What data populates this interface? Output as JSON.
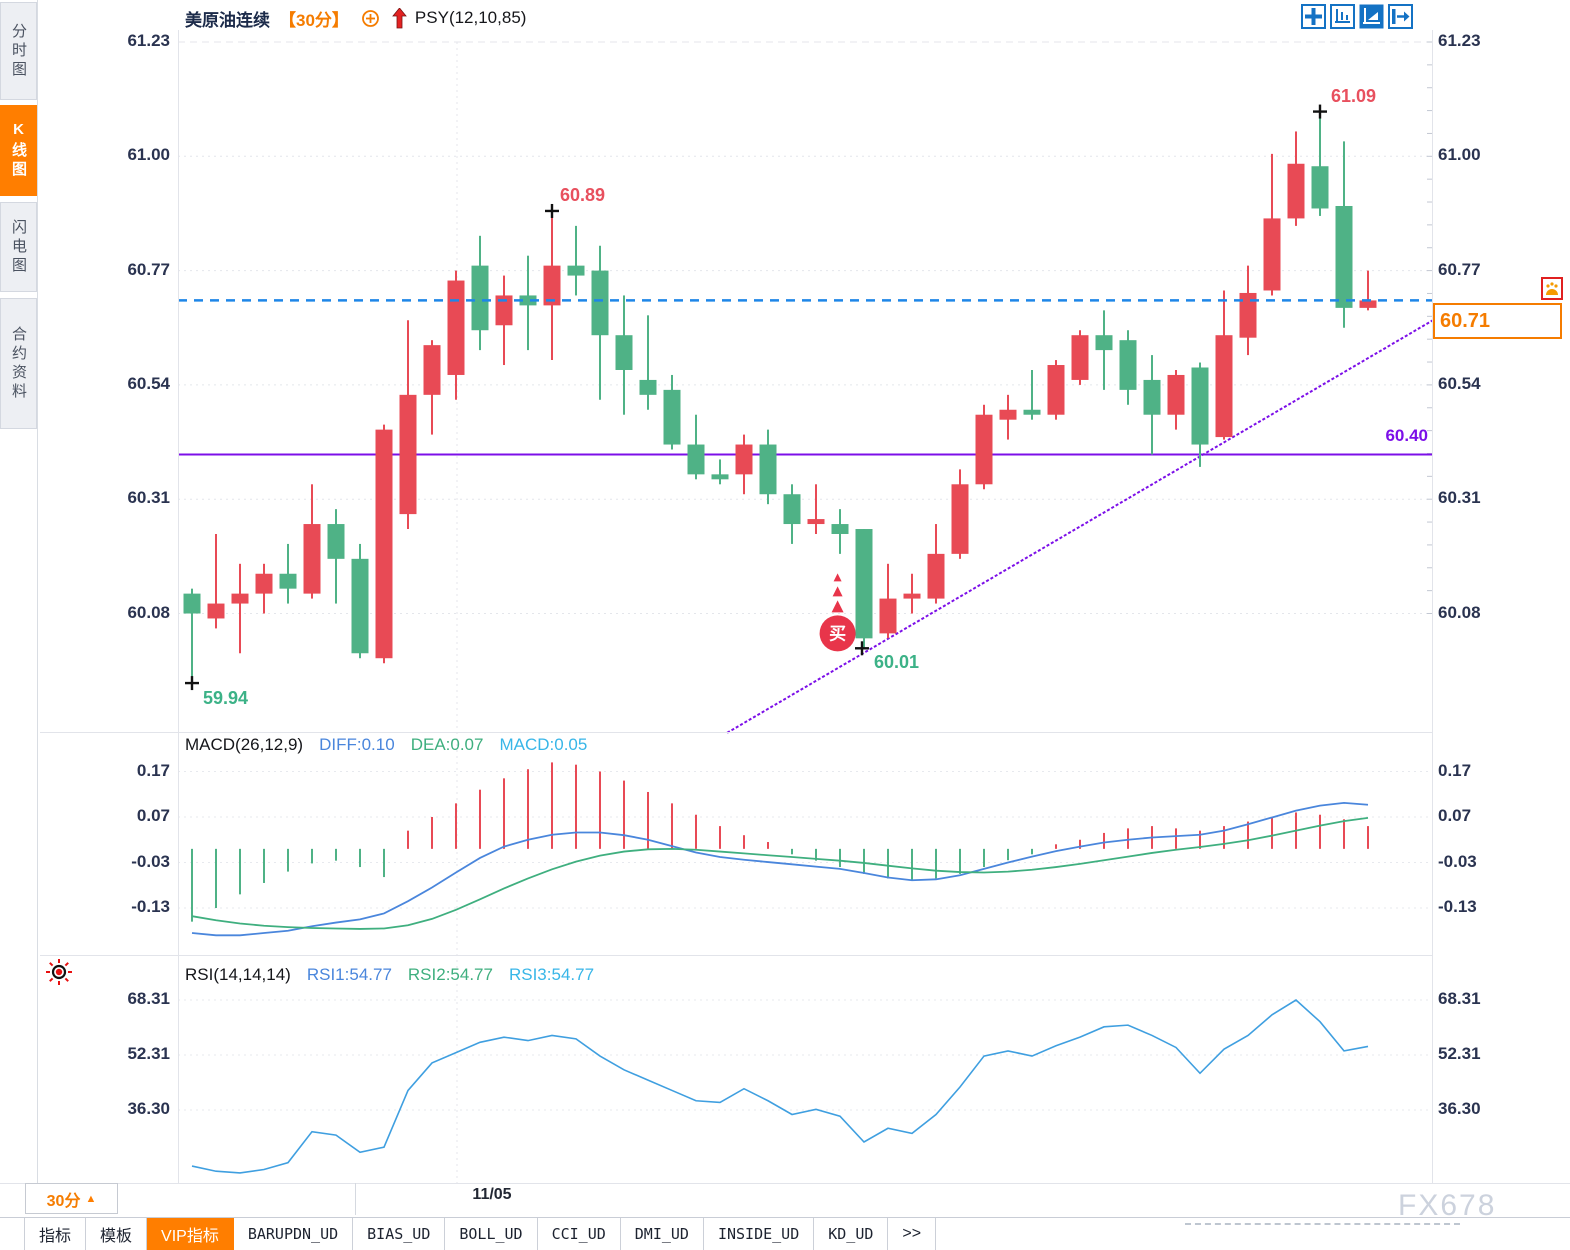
{
  "app": {
    "title_symbol": "美原油连续",
    "title_period": "【30分】",
    "title_indicator": "PSY(12,10,85)"
  },
  "sidebar": {
    "items": [
      {
        "label": "分时图",
        "active": false
      },
      {
        "label": "K线图",
        "active": true
      },
      {
        "label": "闪电图",
        "active": false
      },
      {
        "label": "合约资料",
        "active": false
      }
    ]
  },
  "toolbar": {
    "icons": [
      "layout-grid-icon",
      "axis-scale-icon",
      "chart-style-icon",
      "pane-expand-icon"
    ]
  },
  "chart_data": [
    {
      "type": "candlestick",
      "symbol": "美原油连续",
      "period": "30分",
      "overlay_indicator": "PSY(12,10,85)",
      "y_ticks": [
        61.23,
        61.0,
        60.77,
        60.54,
        60.31,
        60.08
      ],
      "x_tick_label": "11/05",
      "candles": [
        [
          60.12,
          60.13,
          59.94,
          60.08
        ],
        [
          60.07,
          60.24,
          60.05,
          60.1
        ],
        [
          60.1,
          60.18,
          60.0,
          60.12
        ],
        [
          60.12,
          60.18,
          60.08,
          60.16
        ],
        [
          60.16,
          60.22,
          60.1,
          60.13
        ],
        [
          60.12,
          60.34,
          60.11,
          60.26
        ],
        [
          60.26,
          60.29,
          60.1,
          60.19
        ],
        [
          60.19,
          60.22,
          59.99,
          60.0
        ],
        [
          59.99,
          60.46,
          59.98,
          60.45
        ],
        [
          60.28,
          60.67,
          60.25,
          60.52
        ],
        [
          60.52,
          60.63,
          60.44,
          60.62
        ],
        [
          60.56,
          60.77,
          60.51,
          60.75
        ],
        [
          60.78,
          60.84,
          60.61,
          60.65
        ],
        [
          60.66,
          60.76,
          60.58,
          60.72
        ],
        [
          60.72,
          60.8,
          60.61,
          60.7
        ],
        [
          60.7,
          60.89,
          60.59,
          60.78
        ],
        [
          60.78,
          60.86,
          60.72,
          60.76
        ],
        [
          60.77,
          60.82,
          60.51,
          60.64
        ],
        [
          60.64,
          60.72,
          60.48,
          60.57
        ],
        [
          60.55,
          60.68,
          60.49,
          60.52
        ],
        [
          60.53,
          60.56,
          60.41,
          60.42
        ],
        [
          60.42,
          60.48,
          60.35,
          60.36
        ],
        [
          60.36,
          60.39,
          60.34,
          60.35
        ],
        [
          60.36,
          60.44,
          60.32,
          60.42
        ],
        [
          60.42,
          60.45,
          60.3,
          60.32
        ],
        [
          60.32,
          60.34,
          60.22,
          60.26
        ],
        [
          60.26,
          60.34,
          60.24,
          60.27
        ],
        [
          60.26,
          60.29,
          60.2,
          60.24
        ],
        [
          60.25,
          60.25,
          60.01,
          60.03
        ],
        [
          60.04,
          60.18,
          60.03,
          60.11
        ],
        [
          60.11,
          60.16,
          60.08,
          60.12
        ],
        [
          60.11,
          60.26,
          60.1,
          60.2
        ],
        [
          60.2,
          60.37,
          60.19,
          60.34
        ],
        [
          60.34,
          60.5,
          60.33,
          60.48
        ],
        [
          60.47,
          60.52,
          60.43,
          60.49
        ],
        [
          60.49,
          60.57,
          60.47,
          60.48
        ],
        [
          60.48,
          60.59,
          60.47,
          60.58
        ],
        [
          60.55,
          60.65,
          60.54,
          60.64
        ],
        [
          60.64,
          60.69,
          60.53,
          60.61
        ],
        [
          60.63,
          60.65,
          60.5,
          60.53
        ],
        [
          60.55,
          60.6,
          60.4,
          60.48
        ],
        [
          60.48,
          60.57,
          60.45,
          60.56
        ],
        [
          60.575,
          60.585,
          60.375,
          60.42
        ],
        [
          60.435,
          60.73,
          60.43,
          60.64
        ],
        [
          60.635,
          60.78,
          60.6,
          60.725
        ],
        [
          60.73,
          61.005,
          60.72,
          60.875
        ],
        [
          60.875,
          61.05,
          60.86,
          60.985
        ],
        [
          60.98,
          61.09,
          60.88,
          60.895
        ],
        [
          60.9,
          61.03,
          60.655,
          60.695
        ],
        [
          60.695,
          60.77,
          60.69,
          60.71
        ]
      ],
      "annotations": {
        "swing_high_1": {
          "index": 15,
          "price": 60.89,
          "label": "60.89"
        },
        "swing_high_2": {
          "index": 47,
          "price": 61.09,
          "label": "61.09"
        },
        "swing_low_1": {
          "index": 0,
          "price": 59.94,
          "label": "59.94"
        },
        "swing_low_2": {
          "index": 28,
          "price": 60.01,
          "label": "60.01"
        },
        "horizontal_line": {
          "price": 60.4,
          "label": "60.40"
        },
        "trend_line": {
          "start": {
            "index": 22.3,
            "price": 59.84
          },
          "end": {
            "index": 51.7,
            "price": 60.67
          }
        },
        "current_price": {
          "price": 60.71,
          "label": "60.71"
        },
        "buy_marker": {
          "index": 26.9,
          "price": 60.04,
          "label": "买"
        }
      }
    },
    {
      "type": "macd",
      "name": "MACD(26,12,9)",
      "readouts": [
        {
          "label": "DIFF:0.10"
        },
        {
          "label": "DEA:0.07"
        },
        {
          "label": "MACD:0.05"
        }
      ],
      "y_ticks": [
        0.17,
        0.07,
        -0.03,
        -0.13
      ],
      "diff": [
        -0.185,
        -0.19,
        -0.19,
        -0.185,
        -0.18,
        -0.17,
        -0.162,
        -0.155,
        -0.142,
        -0.115,
        -0.085,
        -0.052,
        -0.02,
        0.005,
        0.02,
        0.031,
        0.036,
        0.036,
        0.03,
        0.02,
        0.006,
        -0.008,
        -0.018,
        -0.024,
        -0.029,
        -0.034,
        -0.039,
        -0.044,
        -0.053,
        -0.063,
        -0.069,
        -0.067,
        -0.058,
        -0.044,
        -0.03,
        -0.017,
        -0.005,
        0.005,
        0.014,
        0.02,
        0.025,
        0.028,
        0.031,
        0.04,
        0.054,
        0.069,
        0.084,
        0.095,
        0.101,
        0.097
      ],
      "dea": [
        -0.148,
        -0.157,
        -0.164,
        -0.169,
        -0.172,
        -0.174,
        -0.175,
        -0.176,
        -0.175,
        -0.168,
        -0.154,
        -0.134,
        -0.111,
        -0.087,
        -0.065,
        -0.045,
        -0.028,
        -0.015,
        -0.006,
        -0.001,
        0.0,
        -0.002,
        -0.006,
        -0.01,
        -0.014,
        -0.018,
        -0.022,
        -0.026,
        -0.031,
        -0.037,
        -0.043,
        -0.048,
        -0.051,
        -0.052,
        -0.05,
        -0.046,
        -0.04,
        -0.033,
        -0.025,
        -0.017,
        -0.009,
        -0.002,
        0.004,
        0.011,
        0.019,
        0.029,
        0.04,
        0.051,
        0.061,
        0.068
      ],
      "histogram": [
        -0.16,
        -0.13,
        -0.1,
        -0.075,
        -0.05,
        -0.032,
        -0.026,
        -0.04,
        -0.062,
        0.04,
        0.07,
        0.1,
        0.13,
        0.155,
        0.175,
        0.19,
        0.185,
        0.17,
        0.15,
        0.125,
        0.1,
        0.075,
        0.05,
        0.03,
        0.015,
        -0.012,
        -0.026,
        -0.04,
        -0.055,
        -0.065,
        -0.07,
        -0.065,
        -0.055,
        -0.04,
        -0.025,
        -0.012,
        0.01,
        0.02,
        0.035,
        0.045,
        0.05,
        0.045,
        0.04,
        0.05,
        0.06,
        0.07,
        0.08,
        0.075,
        0.065,
        0.05
      ]
    },
    {
      "type": "line",
      "name": "RSI(14,14,14)",
      "readouts": [
        {
          "label": "RSI1:54.77"
        },
        {
          "label": "RSI2:54.77"
        },
        {
          "label": "RSI3:54.77"
        }
      ],
      "y_ticks": [
        68.31,
        52.31,
        36.3
      ],
      "values": [
        20,
        18.5,
        18,
        19,
        21,
        30,
        29,
        24,
        25.5,
        42,
        50,
        53,
        56,
        57.5,
        56.5,
        58,
        57,
        52,
        48,
        45,
        42,
        39,
        38.5,
        42.5,
        39,
        35,
        36.5,
        34.5,
        27,
        31,
        29.5,
        35,
        43,
        52,
        53.5,
        52,
        55,
        57.5,
        60.5,
        61,
        58,
        54.5,
        47,
        54,
        58,
        64,
        68.3,
        62,
        53.5,
        54.8
      ]
    }
  ],
  "bottom": {
    "period_button": "30分",
    "tabs": [
      {
        "label": "指标",
        "active": false,
        "mono": false
      },
      {
        "label": "模板",
        "active": false,
        "mono": false
      },
      {
        "label": "VIP指标",
        "active": true,
        "mono": false
      },
      {
        "label": "BARUPDN_UD",
        "active": false,
        "mono": true
      },
      {
        "label": "BIAS_UD",
        "active": false,
        "mono": true
      },
      {
        "label": "BOLL_UD",
        "active": false,
        "mono": true
      },
      {
        "label": "CCI_UD",
        "active": false,
        "mono": true
      },
      {
        "label": "DMI_UD",
        "active": false,
        "mono": true
      },
      {
        "label": "INSIDE_UD",
        "active": false,
        "mono": true
      },
      {
        "label": "KD_UD",
        "active": false,
        "mono": true
      },
      {
        "label": ">>",
        "active": false,
        "mono": false
      }
    ]
  },
  "watermark": "FX678",
  "colors": {
    "up": "#e84a55",
    "down": "#4fb286",
    "accent_orange": "#ff7e00",
    "current_line_blue": "#1e86e8",
    "purple": "#7c0fe8",
    "axis_text": "#2a3350",
    "diff_blue": "#4a86dc",
    "dea_green": "#3faf7f",
    "rsi_blue": "#3f9fe0",
    "high_label": "#e8505e",
    "low_label": "#3cb287"
  }
}
